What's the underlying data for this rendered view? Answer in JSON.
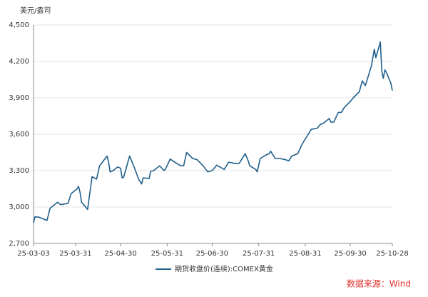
{
  "chart_data": {
    "type": "line",
    "y_label": "美元/盎司",
    "source": "数据来源：Wind",
    "x": [
      "25-03-03",
      "25-03-04",
      "25-03-07",
      "25-03-12",
      "25-03-14",
      "25-03-19",
      "25-03-21",
      "25-03-26",
      "25-03-28",
      "25-04-01",
      "25-04-02",
      "25-04-03",
      "25-04-04",
      "25-04-08",
      "25-04-10",
      "25-04-11",
      "25-04-14",
      "25-04-16",
      "25-04-21",
      "25-04-22",
      "25-04-23",
      "25-04-25",
      "25-04-28",
      "25-04-30",
      "25-05-01",
      "25-05-02",
      "25-05-06",
      "25-05-07",
      "25-05-09",
      "25-05-12",
      "25-05-14",
      "25-05-15",
      "25-05-19",
      "25-05-20",
      "25-05-22",
      "25-05-26",
      "25-05-29",
      "25-05-30",
      "25-06-02",
      "25-06-05",
      "25-06-09",
      "25-06-11",
      "25-06-13",
      "25-06-17",
      "25-06-20",
      "25-06-24",
      "25-06-27",
      "25-06-30",
      "25-07-03",
      "25-07-08",
      "25-07-11",
      "25-07-15",
      "25-07-18",
      "25-07-22",
      "25-07-24",
      "25-07-25",
      "25-07-29",
      "25-07-30",
      "25-08-01",
      "25-08-05",
      "25-08-07",
      "25-08-08",
      "25-08-11",
      "25-08-14",
      "25-08-18",
      "25-08-20",
      "25-08-22",
      "25-08-26",
      "25-08-29",
      "25-09-02",
      "25-09-04",
      "25-09-08",
      "25-09-10",
      "25-09-12",
      "25-09-16",
      "25-09-17",
      "25-09-19",
      "25-09-22",
      "25-09-24",
      "25-09-26",
      "25-09-30",
      "25-10-02",
      "25-10-06",
      "25-10-08",
      "25-10-10",
      "25-10-14",
      "25-10-16",
      "25-10-17",
      "25-10-20",
      "25-10-21",
      "25-10-22",
      "25-10-23",
      "25-10-24",
      "25-10-27",
      "25-10-28"
    ],
    "series": [
      {
        "name": "期货收盘价(连续):COMEX黄金",
        "color": "#1f5f8b",
        "values": [
          2870,
          2920,
          2915,
          2890,
          2990,
          3040,
          3020,
          3030,
          3110,
          3150,
          3170,
          3120,
          3040,
          2980,
          3160,
          3250,
          3230,
          3340,
          3420,
          3370,
          3290,
          3300,
          3330,
          3320,
          3240,
          3245,
          3420,
          3390,
          3330,
          3230,
          3190,
          3240,
          3235,
          3295,
          3300,
          3340,
          3300,
          3315,
          3395,
          3370,
          3340,
          3340,
          3450,
          3400,
          3390,
          3340,
          3290,
          3300,
          3345,
          3310,
          3370,
          3360,
          3360,
          3440,
          3380,
          3340,
          3310,
          3290,
          3400,
          3430,
          3440,
          3460,
          3400,
          3400,
          3390,
          3380,
          3420,
          3440,
          3520,
          3600,
          3640,
          3650,
          3680,
          3690,
          3730,
          3700,
          3700,
          3780,
          3780,
          3820,
          3870,
          3900,
          3950,
          4040,
          4000,
          4160,
          4300,
          4230,
          4360,
          4120,
          4060,
          4130,
          4110,
          4020,
          3960
        ]
      }
    ],
    "xlim": [
      "25-03-03",
      "25-10-28"
    ],
    "xticks": [
      "25-03-03",
      "25-03-31",
      "25-04-30",
      "25-05-31",
      "25-06-30",
      "25-07-31",
      "25-08-31",
      "25-09-30",
      "25-10-28"
    ],
    "ylim": [
      2700,
      4500
    ],
    "yticks": [
      {
        "value": 2700,
        "label": "2,700"
      },
      {
        "value": 3000,
        "label": "3,000"
      },
      {
        "value": 3300,
        "label": "3,300"
      },
      {
        "value": 3600,
        "label": "3,600"
      },
      {
        "value": 3900,
        "label": "3,900"
      },
      {
        "value": 4200,
        "label": "4,200"
      },
      {
        "value": 4500,
        "label": "4,500"
      }
    ],
    "grid": true
  }
}
